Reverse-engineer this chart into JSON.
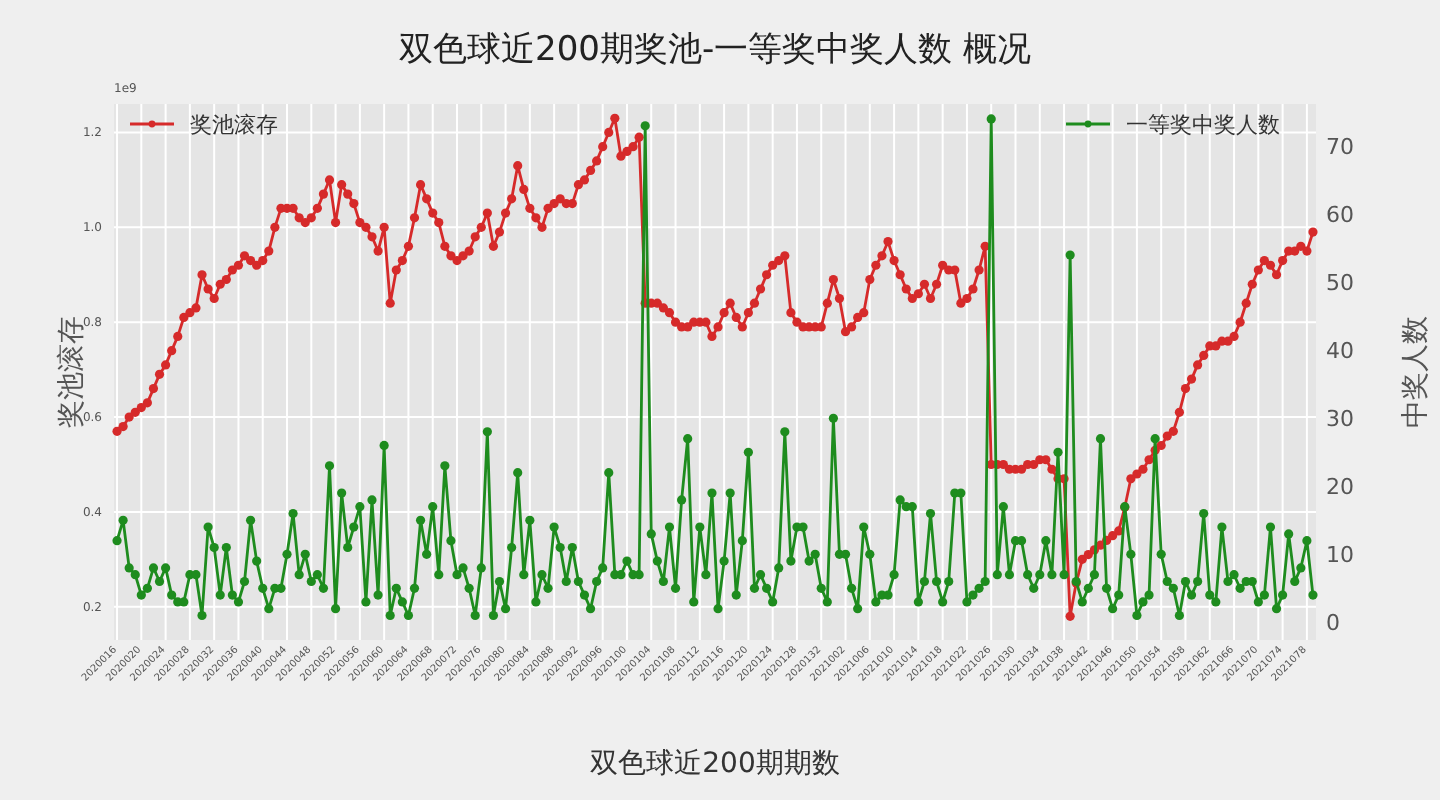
{
  "chart_data": {
    "type": "line",
    "title": "双色球近200期奖池-一等奖中奖人数  概况",
    "xlabel": "双色球近200期期数",
    "ylabel": "奖池滚存",
    "y2label": "中奖人数",
    "annotations": [
      "1e9"
    ],
    "categories": [
      "2020016",
      null,
      null,
      null,
      "2020020",
      null,
      null,
      null,
      "2020024",
      null,
      null,
      null,
      "2020028",
      null,
      null,
      null,
      "2020032",
      null,
      null,
      null,
      "2020036",
      null,
      null,
      null,
      "2020040",
      null,
      null,
      null,
      "2020044",
      null,
      null,
      null,
      "2020048",
      null,
      null,
      null,
      "2020052",
      null,
      null,
      null,
      "2020056",
      null,
      null,
      null,
      "2020060",
      null,
      null,
      null,
      "2020064",
      null,
      null,
      null,
      "2020068",
      null,
      null,
      null,
      "2020072",
      null,
      null,
      null,
      "2020076",
      null,
      null,
      null,
      "2020080",
      null,
      null,
      null,
      "2020084",
      null,
      null,
      null,
      "2020088",
      null,
      null,
      null,
      "2020092",
      null,
      null,
      null,
      "2020096",
      null,
      null,
      null,
      "2020100",
      null,
      null,
      null,
      "2020104",
      null,
      null,
      null,
      "2020108",
      null,
      null,
      null,
      "2020112",
      null,
      null,
      null,
      "2020116",
      null,
      null,
      null,
      "2020120",
      null,
      null,
      null,
      "2020124",
      null,
      null,
      null,
      "2020128",
      null,
      null,
      null,
      "2020132",
      null,
      null,
      null,
      "2021002",
      null,
      null,
      null,
      "2021006",
      null,
      null,
      null,
      "2021010",
      null,
      null,
      null,
      "2021014",
      null,
      null,
      null,
      "2021018",
      null,
      null,
      null,
      "2021022",
      null,
      null,
      null,
      "2021026",
      null,
      null,
      null,
      "2021030",
      null,
      null,
      null,
      "2021034",
      null,
      null,
      null,
      "2021038",
      null,
      null,
      null,
      "2021042",
      null,
      null,
      null,
      "2021046",
      null,
      null,
      null,
      "2021050",
      null,
      null,
      null,
      "2021054",
      null,
      null,
      null,
      "2021058",
      null,
      null,
      null,
      "2021062",
      null,
      null,
      null,
      "2021066",
      null,
      null,
      null,
      "2021070",
      null,
      null,
      null,
      "2021074",
      null,
      null,
      null,
      "2021078",
      null
    ],
    "ylim": [
      0.13,
      1.26
    ],
    "yticks": [
      0.2,
      0.4,
      0.6,
      0.8,
      {
        "value": 1,
        "label": "1.0"
      },
      1.2
    ],
    "y2lim": [
      -2.6,
      76.2
    ],
    "y2ticks": [
      0,
      10,
      20,
      30,
      40,
      50,
      60,
      70
    ],
    "grid": true,
    "legend": "top",
    "marker": "circle",
    "series": [
      {
        "name": "奖池滚存",
        "color": "#d62a2a",
        "values": [
          0.57,
          0.58,
          0.6,
          0.61,
          0.62,
          0.63,
          0.66,
          0.69,
          0.71,
          0.74,
          0.77,
          0.81,
          0.82,
          0.83,
          0.9,
          0.87,
          0.85,
          0.88,
          0.89,
          0.91,
          0.92,
          0.94,
          0.93,
          0.92,
          0.93,
          0.95,
          1.0,
          1.04,
          1.04,
          1.04,
          1.02,
          1.01,
          1.02,
          1.04,
          1.07,
          1.1,
          1.01,
          1.09,
          1.07,
          1.05,
          1.01,
          1.0,
          0.98,
          0.95,
          1.0,
          0.84,
          0.91,
          0.93,
          0.96,
          1.02,
          1.09,
          1.06,
          1.03,
          1.01,
          0.96,
          0.94,
          0.93,
          0.94,
          0.95,
          0.98,
          1.0,
          1.03,
          0.96,
          0.99,
          1.03,
          1.06,
          1.13,
          1.08,
          1.04,
          1.02,
          1.0,
          1.04,
          1.05,
          1.06,
          1.05,
          1.05,
          1.09,
          1.1,
          1.12,
          1.14,
          1.17,
          1.2,
          1.23,
          1.15,
          1.16,
          1.17,
          1.19,
          0.84,
          0.84,
          0.84,
          0.83,
          0.82,
          0.8,
          0.79,
          0.79,
          0.8,
          0.8,
          0.8,
          0.77,
          0.79,
          0.82,
          0.84,
          0.81,
          0.79,
          0.82,
          0.84,
          0.87,
          0.9,
          0.92,
          0.93,
          0.94,
          0.82,
          0.8,
          0.79,
          0.79,
          0.79,
          0.79,
          0.84,
          0.89,
          0.85,
          0.78,
          0.79,
          0.81,
          0.82,
          0.89,
          0.92,
          0.94,
          0.97,
          0.93,
          0.9,
          0.87,
          0.85,
          0.86,
          0.88,
          0.85,
          0.88,
          0.92,
          0.91,
          0.91,
          0.84,
          0.85,
          0.87,
          0.91,
          0.96,
          0.5,
          0.5,
          0.5,
          0.49,
          0.49,
          0.49,
          0.5,
          0.5,
          0.51,
          0.51,
          0.49,
          0.47,
          0.47,
          0.18,
          0.25,
          0.3,
          0.31,
          0.32,
          0.33,
          0.34,
          0.35,
          0.36,
          0.41,
          0.47,
          0.48,
          0.49,
          0.51,
          0.53,
          0.54,
          0.56,
          0.57,
          0.61,
          0.66,
          0.68,
          0.71,
          0.73,
          0.75,
          0.75,
          0.76,
          0.76,
          0.77,
          0.8,
          0.84,
          0.88,
          0.91,
          0.93,
          0.92,
          0.9,
          0.93,
          0.95,
          0.95,
          0.96,
          0.95,
          0.99
        ]
      },
      {
        "name": "一等奖中奖人数",
        "color": "#1e8c1e",
        "axis": "y2",
        "values": [
          12,
          15,
          8,
          7,
          4,
          5,
          8,
          6,
          8,
          4,
          3,
          3,
          7,
          7,
          1,
          14,
          11,
          4,
          11,
          4,
          3,
          6,
          15,
          9,
          5,
          2,
          5,
          5,
          10,
          16,
          7,
          10,
          6,
          7,
          5,
          23,
          2,
          19,
          11,
          14,
          17,
          3,
          18,
          4,
          26,
          1,
          5,
          3,
          1,
          5,
          15,
          10,
          17,
          7,
          23,
          12,
          7,
          8,
          5,
          1,
          8,
          28,
          1,
          6,
          2,
          11,
          22,
          7,
          15,
          3,
          7,
          5,
          14,
          11,
          6,
          11,
          6,
          4,
          2,
          6,
          8,
          22,
          7,
          7,
          9,
          7,
          7,
          73,
          13,
          9,
          6,
          14,
          5,
          18,
          27,
          3,
          14,
          7,
          19,
          2,
          9,
          19,
          4,
          12,
          25,
          5,
          7,
          5,
          3,
          8,
          28,
          9,
          14,
          14,
          9,
          10,
          5,
          3,
          30,
          10,
          10,
          5,
          2,
          14,
          10,
          3,
          4,
          4,
          7,
          18,
          17,
          17,
          3,
          6,
          16,
          6,
          3,
          6,
          19,
          19,
          3,
          4,
          5,
          6,
          74,
          7,
          17,
          7,
          12,
          12,
          7,
          5,
          7,
          12,
          7,
          25,
          7,
          54,
          6,
          3,
          5,
          7,
          27,
          5,
          2,
          4,
          17,
          10,
          1,
          3,
          4,
          27,
          10,
          6,
          5,
          1,
          6,
          4,
          6,
          16,
          4,
          3,
          14,
          6,
          7,
          5,
          6,
          6,
          3,
          4,
          14,
          2,
          4,
          13,
          6,
          8,
          12,
          4
        ]
      }
    ]
  }
}
